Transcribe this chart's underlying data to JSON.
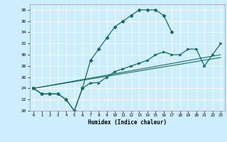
{
  "xlabel": "Humidex (Indice chaleur)",
  "bg_color": "#cceeff",
  "grid_color": "#ffffff",
  "line_color": "#1a6b5a",
  "xlim": [
    -0.5,
    23.5
  ],
  "ylim": [
    20,
    39
  ],
  "xticks": [
    0,
    1,
    2,
    3,
    4,
    5,
    6,
    7,
    8,
    9,
    10,
    11,
    12,
    13,
    14,
    15,
    16,
    17,
    18,
    19,
    20,
    21,
    22,
    23
  ],
  "yticks": [
    20,
    22,
    24,
    26,
    28,
    30,
    32,
    34,
    36,
    38
  ],
  "curve1_x": [
    0,
    1,
    2,
    3,
    4,
    5,
    6,
    7,
    8,
    9,
    10,
    11,
    12,
    13,
    14,
    15,
    16,
    17
  ],
  "curve1_y": [
    24,
    23,
    23,
    23,
    22,
    20,
    24,
    29,
    31,
    33,
    35,
    36,
    37,
    38,
    38,
    38,
    37,
    34
  ],
  "curve2_x": [
    0,
    1,
    2,
    3,
    4,
    5,
    6,
    7,
    8,
    9,
    10,
    11,
    12,
    13,
    14,
    15,
    16,
    17,
    18,
    19,
    20,
    21,
    22,
    23
  ],
  "curve2_y": [
    24,
    23,
    23,
    23,
    22,
    20,
    24,
    25,
    25,
    26,
    27,
    27.5,
    28,
    28.5,
    29,
    30,
    30.5,
    30,
    30,
    31,
    31,
    28,
    30,
    32
  ],
  "curve3_x": [
    0,
    23
  ],
  "curve3_y": [
    24,
    30
  ],
  "curve4_x": [
    0,
    23
  ],
  "curve4_y": [
    24,
    29.5
  ]
}
